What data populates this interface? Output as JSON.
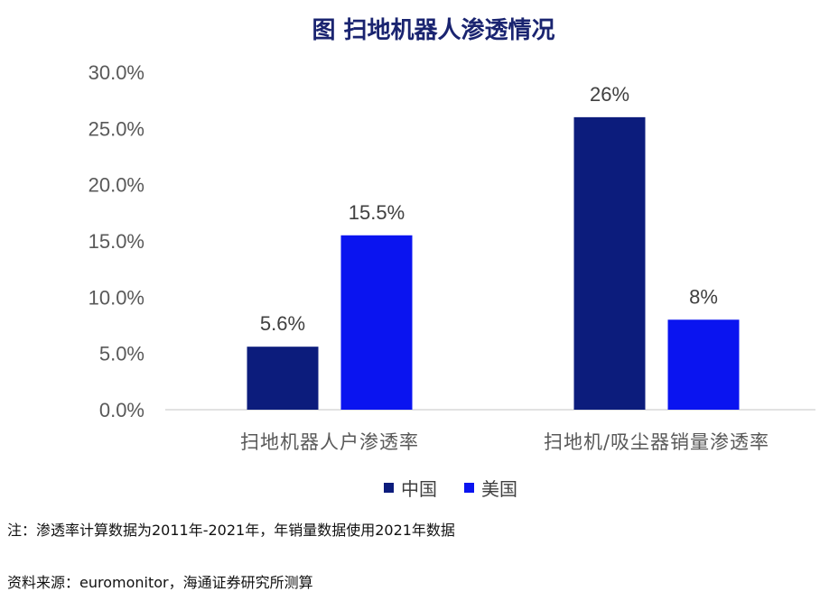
{
  "chart_data": {
    "type": "bar",
    "title": "图 扫地机器人渗透情况",
    "categories": [
      "扫地机器人户渗透率",
      "扫地机/吸尘器销量渗透率"
    ],
    "series": [
      {
        "name": "中国",
        "values": [
          5.6,
          26
        ],
        "labels": [
          "5.6%",
          "26%"
        ]
      },
      {
        "name": "美国",
        "values": [
          15.5,
          8
        ],
        "labels": [
          "15.5%",
          "8%"
        ]
      }
    ],
    "ylim": [
      0,
      30
    ],
    "yticks": [
      "0.0%",
      "5.0%",
      "10.0%",
      "15.0%",
      "20.0%",
      "25.0%",
      "30.0%"
    ],
    "xlabel": "",
    "ylabel": "",
    "grid": false,
    "legend_position": "bottom",
    "colors": {
      "中国": "#0c1c7c",
      "美国": "#0a14f0",
      "title": "#1a2470"
    }
  },
  "notes": {
    "note": "注：渗透率计算数据为2011年-2021年，年销量数据使用2021年数据",
    "source": "资料来源：euromonitor，海通证券研究所测算"
  }
}
